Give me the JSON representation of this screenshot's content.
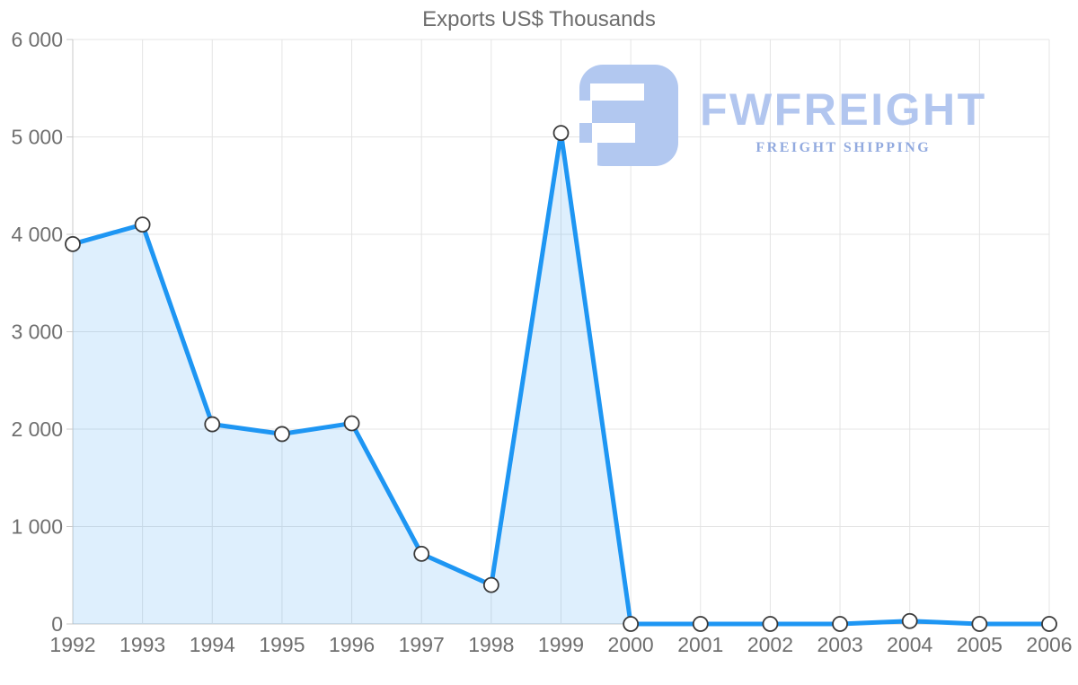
{
  "chart_data": {
    "type": "area",
    "title": "Exports US$ Thousands",
    "x": [
      1992,
      1993,
      1994,
      1995,
      1996,
      1997,
      1998,
      1999,
      2000,
      2001,
      2002,
      2003,
      2004,
      2005,
      2006
    ],
    "x_tick_labels": [
      "1992",
      "1993",
      "1994",
      "1995",
      "1996",
      "1997",
      "1998",
      "1999",
      "2000",
      "2001",
      "2002",
      "2003",
      "2004",
      "2005",
      "2006"
    ],
    "series": [
      {
        "name": "Exports US$ Thousands",
        "values": [
          3900,
          4100,
          2050,
          1950,
          2060,
          720,
          400,
          5040,
          0,
          0,
          0,
          0,
          30,
          0,
          0
        ]
      }
    ],
    "ylim": [
      0,
      6000
    ],
    "y_ticks": {
      "values": [
        0,
        1000,
        2000,
        3000,
        4000,
        5000,
        6000
      ],
      "labels": [
        "0",
        "1 000",
        "2 000",
        "3 000",
        "4 000",
        "5 000",
        "6 000"
      ]
    },
    "grid": true,
    "legend_position": "none",
    "xlabel": "",
    "ylabel": "",
    "styles": {
      "line_color": "#1e96f3",
      "area_fill": "rgba(33,150,243,0.15)",
      "marker_fill": "#ffffff",
      "marker_stroke": "#3a3a3a",
      "grid_color": "#e4e4e4",
      "axis_color": "#c8c8c8",
      "tick_label_color": "#6f6f6f",
      "title_color": "#6d6d6d"
    }
  },
  "watermark": {
    "brand": "FWFREIGHT",
    "tagline": "FREIGHT SHIPPING",
    "brand_color": "#b2c6ef",
    "tagline_color": "#92aadf",
    "icon_color": "#b2c8f0",
    "icon": "fwfreight-logo-icon"
  }
}
